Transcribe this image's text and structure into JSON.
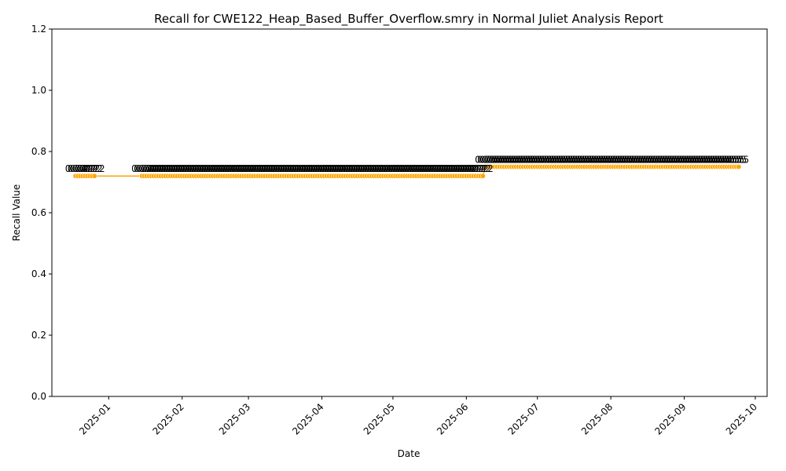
{
  "chart_data": {
    "type": "line",
    "title": "Recall for CWE122_Heap_Based_Buffer_Overflow.smry in Normal Juliet Analysis Report",
    "xlabel": "Date",
    "ylabel": "Recall Value",
    "ylim": [
      0,
      1.2
    ],
    "yticks": [
      "0.0",
      "0.2",
      "0.4",
      "0.6",
      "0.8",
      "1.0",
      "1.2"
    ],
    "xticks": [
      "2025-01",
      "2025-02",
      "2025-03",
      "2025-04",
      "2025-05",
      "2025-06",
      "2025-07",
      "2025-08",
      "2025-09",
      "2025-10"
    ],
    "xlim": [
      "2024-12-08",
      "2025-10-06"
    ],
    "grid": false,
    "legend": "none",
    "line_color": "#FFA500",
    "marker_color": "#FFA500",
    "series": [
      {
        "segments": [
          {
            "start": "2024-12-18",
            "end": "2024-12-26",
            "y": 0.72,
            "label": "0.72"
          },
          {
            "start": "2025-01-15",
            "end": "2025-06-09",
            "y": 0.72,
            "label": "0.72"
          },
          {
            "start": "2025-06-09",
            "end": "2025-09-24",
            "y": 0.75,
            "label": "0.75"
          }
        ]
      }
    ]
  }
}
